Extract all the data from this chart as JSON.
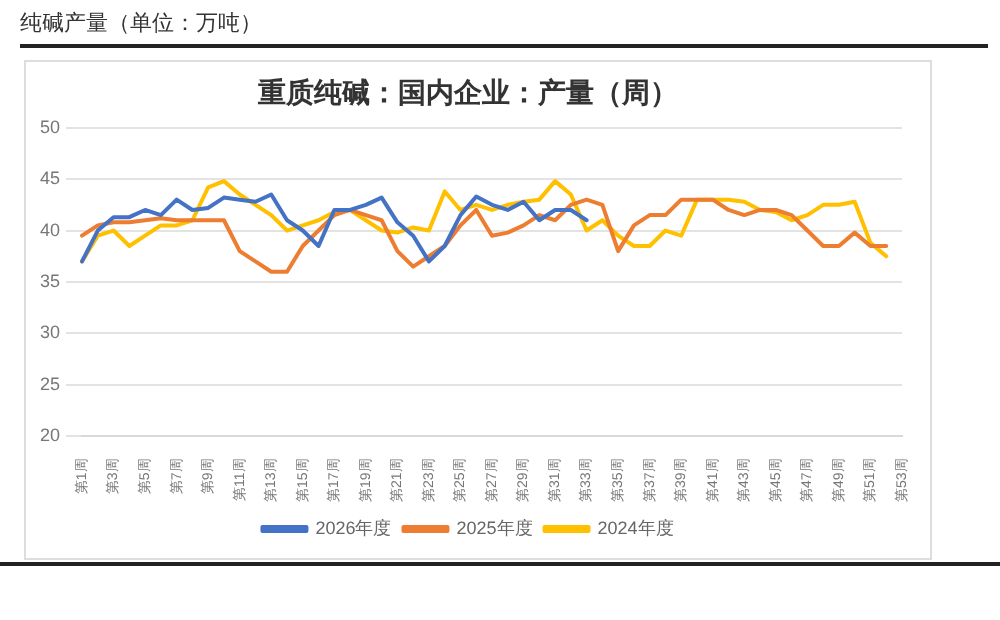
{
  "chart_data": {
    "type": "line",
    "subtitle": "纯碱产量（单位：万吨）",
    "title": "重质纯碱：国内企业：产量（周）",
    "categories": [
      "第1周",
      null,
      "第3周",
      null,
      "第5周",
      null,
      "第7周",
      null,
      "第9周",
      null,
      "第11周",
      null,
      "第13周",
      null,
      "第15周",
      null,
      "第17周",
      null,
      "第19周",
      null,
      "第21周",
      null,
      "第23周",
      null,
      "第25周",
      null,
      "第27周",
      null,
      "第29周",
      null,
      "第31周",
      null,
      "第33周",
      null,
      "第35周",
      null,
      "第37周",
      null,
      "第39周",
      null,
      "第41周",
      null,
      "第43周",
      null,
      "第45周",
      null,
      "第47周",
      null,
      "第49周",
      null,
      "第51周",
      null,
      "第53周"
    ],
    "series": [
      {
        "name": "2026年度",
        "color": "#4472c4",
        "values": [
          37,
          40,
          41.3,
          41.3,
          42,
          41.5,
          43,
          42,
          42.2,
          43.2,
          43,
          42.8,
          43.5,
          41,
          40,
          38.5,
          42,
          42,
          42.5,
          43.2,
          40.8,
          39.5,
          37,
          38.5,
          41.5,
          43.3,
          42.5,
          42,
          42.8,
          41,
          42,
          42,
          41,
          null,
          null,
          null,
          null,
          null,
          null,
          null,
          null,
          null,
          null,
          null,
          null,
          null,
          null,
          null,
          null,
          null,
          null,
          null,
          null
        ]
      },
      {
        "name": "2025年度",
        "color": "#ed7d31",
        "values": [
          39.5,
          40.5,
          40.8,
          40.8,
          41,
          41.2,
          41,
          41,
          41,
          41,
          38,
          37,
          36,
          36,
          38.5,
          40,
          41.5,
          42,
          41.5,
          41,
          38,
          36.5,
          37.5,
          38.5,
          40.5,
          42,
          39.5,
          39.8,
          40.5,
          41.5,
          41,
          42.5,
          43,
          42.5,
          38,
          40.5,
          41.5,
          41.5,
          43,
          43,
          43,
          42,
          41.5,
          42,
          42,
          41.5,
          40,
          38.5,
          38.5,
          39.8,
          38.5,
          38.5,
          null
        ]
      },
      {
        "name": "2024年度",
        "color": "#ffc000",
        "values": [
          37,
          39.5,
          40,
          38.5,
          39.5,
          40.5,
          40.5,
          41,
          44.2,
          44.8,
          43.5,
          42.5,
          41.5,
          40,
          40.5,
          41,
          41.8,
          42,
          41,
          40,
          39.8,
          40.3,
          40,
          43.8,
          42,
          42.5,
          42,
          42.5,
          42.8,
          43,
          44.8,
          43.5,
          40,
          41,
          39.5,
          38.5,
          38.5,
          40,
          39.5,
          43,
          43,
          43,
          42.8,
          42,
          41.8,
          41,
          41.5,
          42.5,
          42.5,
          42.8,
          38.8,
          37.5,
          null
        ]
      }
    ],
    "ylim": [
      20,
      50
    ],
    "yticks": [
      20,
      25,
      30,
      35,
      40,
      45,
      50
    ],
    "grid": "y",
    "legend": "bottom",
    "marker": "none",
    "line_style": "solid"
  }
}
